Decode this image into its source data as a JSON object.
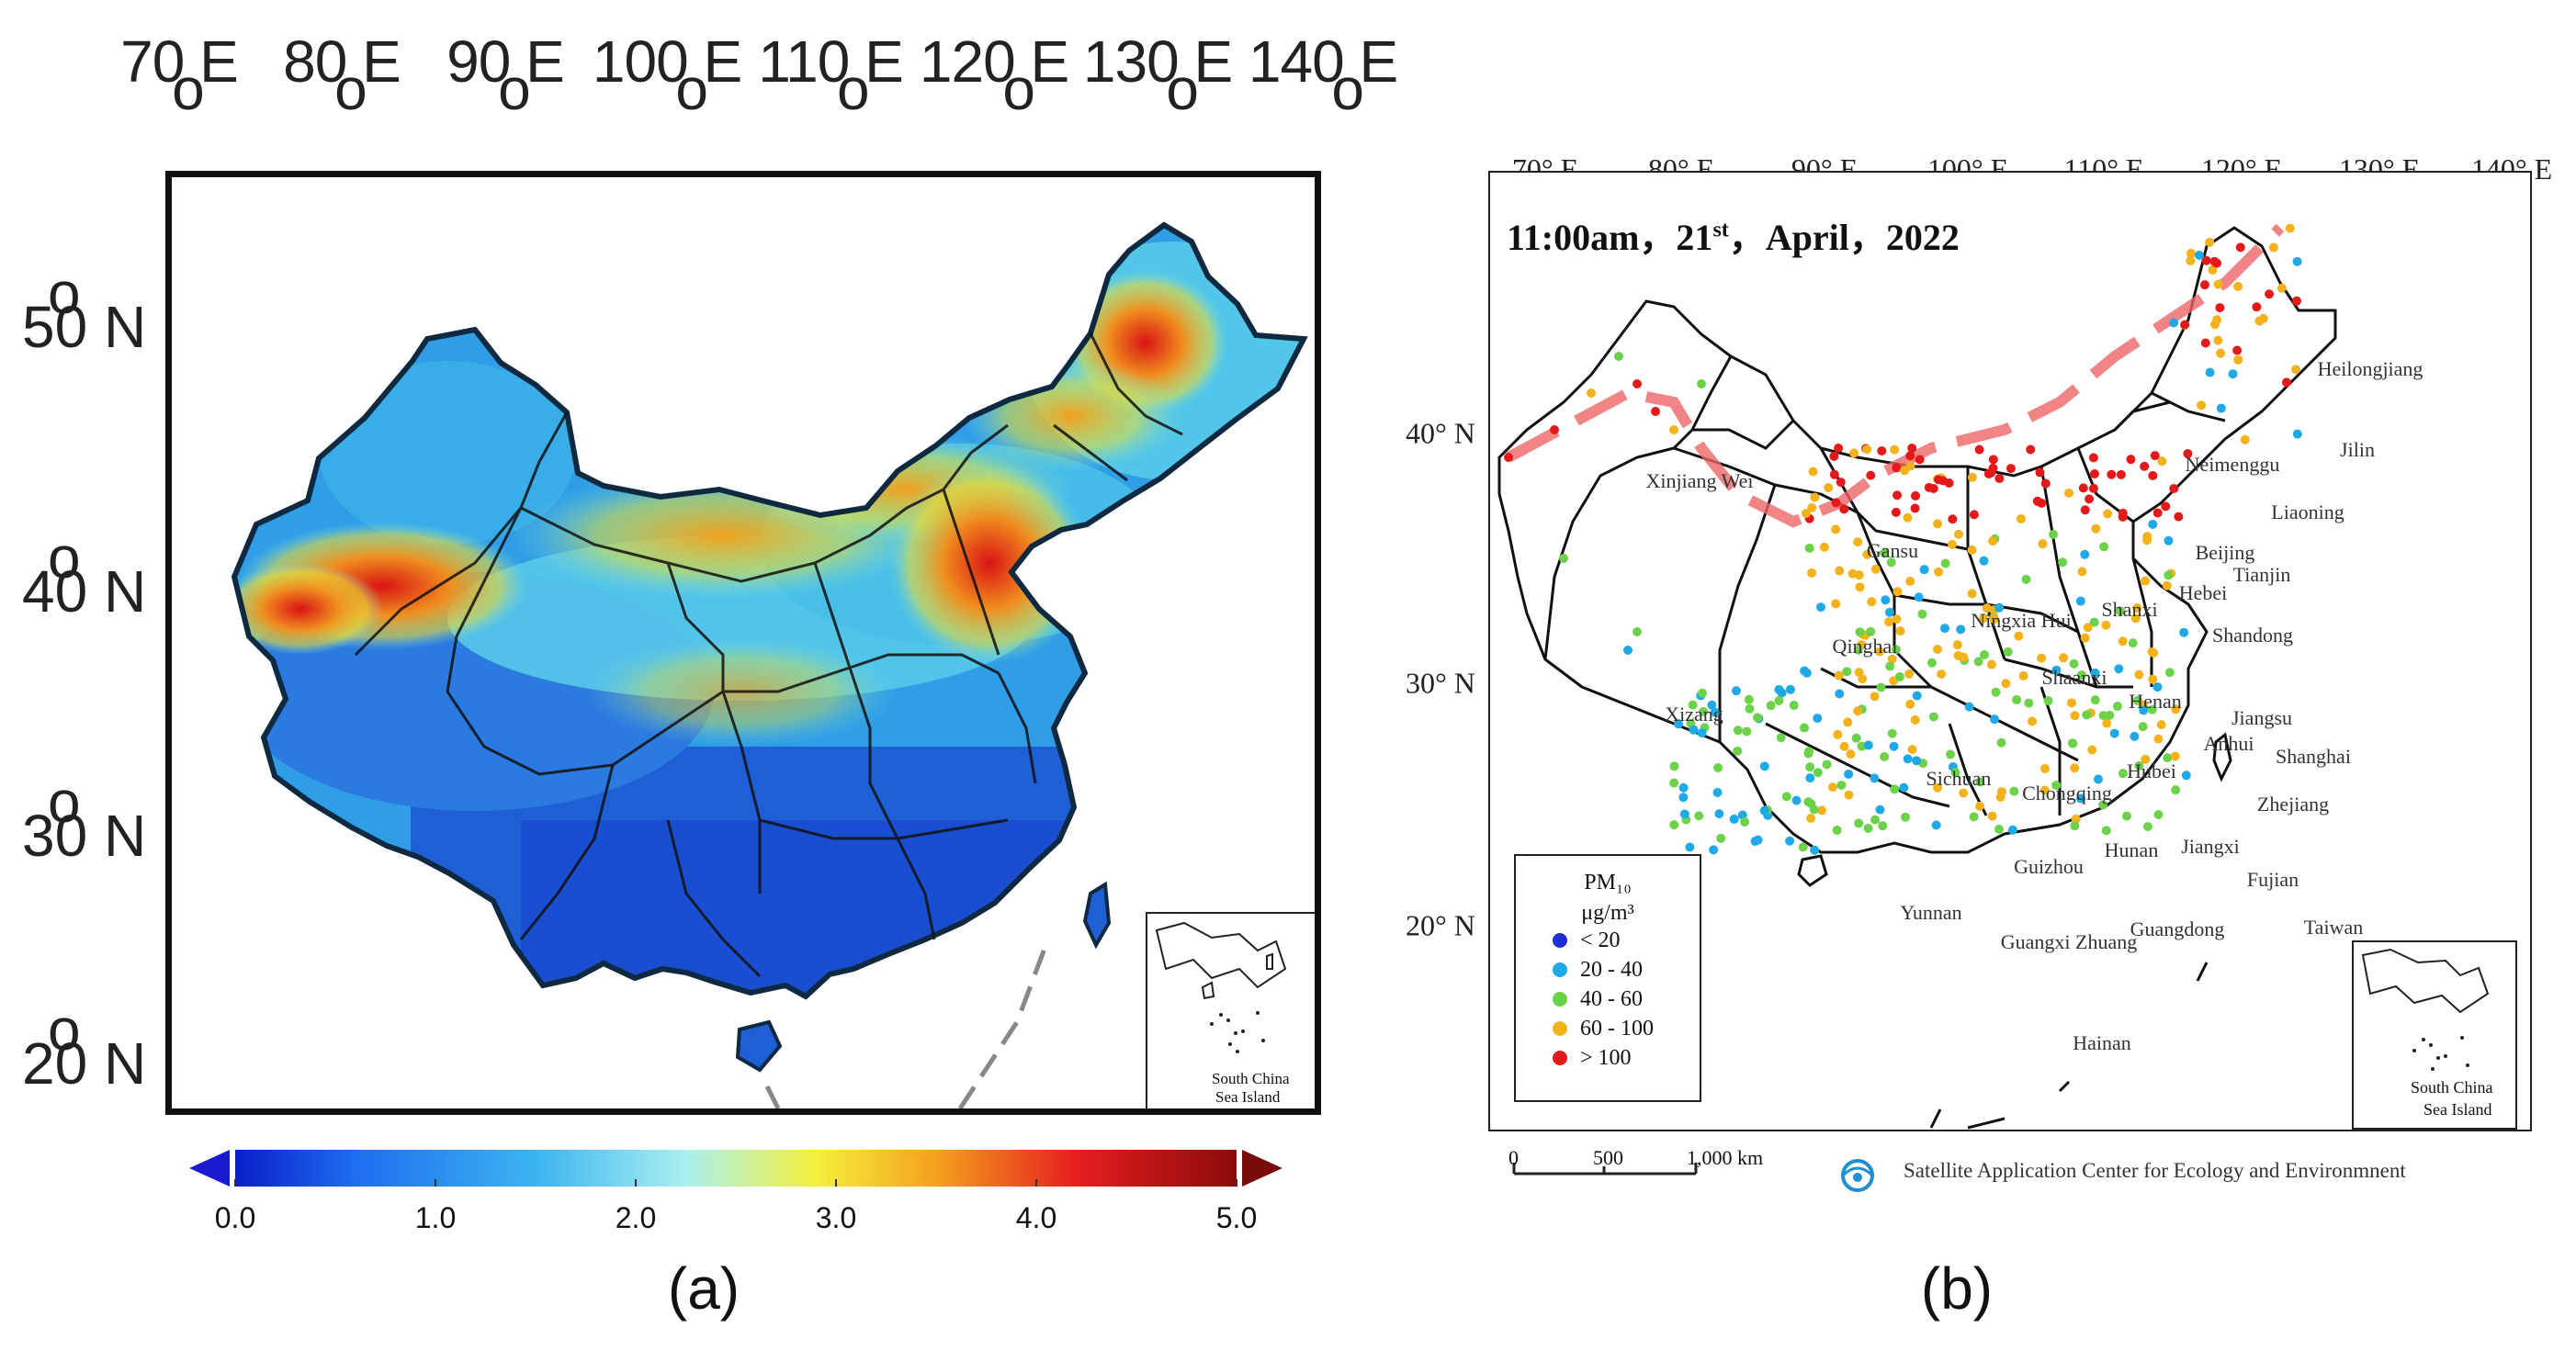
{
  "panel_a": {
    "lon_labels": [
      {
        "value": "70",
        "suffix": "E"
      },
      {
        "value": "80",
        "suffix": "E"
      },
      {
        "value": "90",
        "suffix": "E"
      },
      {
        "value": "100",
        "suffix": "E"
      },
      {
        "value": "110",
        "suffix": "E"
      },
      {
        "value": "120",
        "suffix": "E"
      },
      {
        "value": "130",
        "suffix": "E"
      },
      {
        "value": "140",
        "suffix": "E"
      }
    ],
    "lat_labels": [
      {
        "value": "50",
        "suffix": "N"
      },
      {
        "value": "40",
        "suffix": "N"
      },
      {
        "value": "30",
        "suffix": "N"
      },
      {
        "value": "20",
        "suffix": "N"
      }
    ],
    "inset_label_1": "South China",
    "inset_label_2": "Sea Island",
    "colorbar_ticks": [
      "0.0",
      "1.0",
      "2.0",
      "3.0",
      "4.0",
      "5.0"
    ],
    "colorbar_colors": [
      "#0a1ec8",
      "#1e6ef0",
      "#3cb4f0",
      "#aaf0f0",
      "#f5f03c",
      "#f5a01e",
      "#e61e1e",
      "#8c0a0a"
    ],
    "caption": "(a)"
  },
  "panel_b": {
    "lon_labels": [
      "70° E",
      "80° E",
      "90° E",
      "100° E",
      "110° E",
      "120° E",
      "130° E",
      "140° E"
    ],
    "lat_labels": [
      "40° N",
      "30° N",
      "20° N"
    ],
    "title_time": "11:00am，21",
    "title_sup": "st",
    "title_rest": "，April，2022",
    "provinces": [
      "Heilongjiang",
      "Jilin",
      "Liaoning",
      "Neimenggu",
      "Xinjiang Wei",
      "Gansu",
      "Qinghai",
      "Xizang",
      "Ningxia Hui",
      "Shanxi",
      "Beijing",
      "Hebei",
      "Tianjin",
      "Shandong",
      "Shaanxi",
      "Henan",
      "Jiangsu",
      "Anhui",
      "Shanghai",
      "Sichuan",
      "Hubei",
      "Chongqing",
      "Zhejiang",
      "Hunan",
      "Jiangxi",
      "Guizhou",
      "Fujian",
      "Yunnan",
      "Guangxi Zhuang",
      "Guangdong",
      "Taiwan",
      "Hainan"
    ],
    "legend": {
      "title": "PM₁₀",
      "unit": "μg/m³",
      "items": [
        {
          "label": "< 20",
          "color": "#1c2fd4"
        },
        {
          "label": "20 - 40",
          "color": "#1fa9e6"
        },
        {
          "label": "40 - 60",
          "color": "#6bd24a"
        },
        {
          "label": "60 - 100",
          "color": "#f2b21c"
        },
        {
          "label": "> 100",
          "color": "#e41a1a"
        }
      ]
    },
    "scale_ticks": [
      "0",
      "500",
      "1,000 km"
    ],
    "credit": "Satellite Application Center for Ecology and Environmnent",
    "inset_label_1": "South China",
    "inset_label_2": "Sea Island",
    "caption": "(b)"
  }
}
